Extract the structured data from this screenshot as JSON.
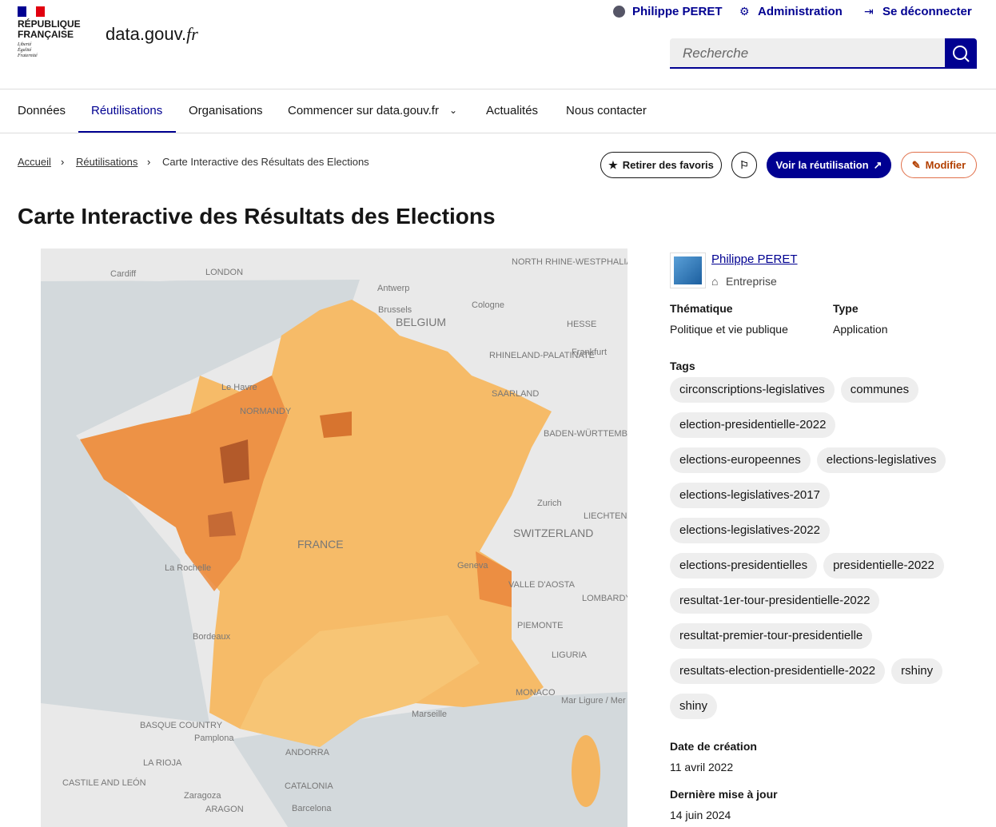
{
  "header": {
    "republique": [
      "RÉPUBLIQUE",
      "FRANÇAISE"
    ],
    "motto": [
      "Liberté",
      "Égalité",
      "Fraternité"
    ],
    "site_name": "data.gouv.",
    "site_tld": "fr",
    "user_links": [
      "Philippe PERET",
      "Administration",
      "Se déconnecter"
    ],
    "search_placeholder": "Recherche"
  },
  "nav": [
    "Données",
    "Réutilisations",
    "Organisations",
    "Commencer sur data.gouv.fr",
    "Actualités",
    "Nous contacter"
  ],
  "breadcrumb": [
    "Accueil",
    "Réutilisations",
    "Carte Interactive des Résultats des Elections"
  ],
  "actions": [
    "Retirer des favoris",
    "Voir la réutilisation",
    "Modifier"
  ],
  "title": "Carte Interactive des Résultats des Elections",
  "map_labels": [
    "LONDON",
    "Cardiff",
    "NORTH RHINE-WESTPHALIA",
    "Antwerp",
    "Brussels",
    "BELGIUM",
    "Cologne",
    "HESSE",
    "RHINELAND-PALATINATE",
    "Frankfurt",
    "Le Havre",
    "NORMANDY",
    "SAARLAND",
    "BADEN-WÜRTTEMBERG",
    "Zurich",
    "SWITZERLAND",
    "LIECHTENSTEIN",
    "FRANCE",
    "La Rochelle",
    "Geneva",
    "VALLE D'AOSTA",
    "LOMBARDY",
    "PIEMONTE",
    "Bordeaux",
    "LIGURIA",
    "MONACO",
    "Mar Ligure / Mer Ligure",
    "Marseille",
    "BASQUE COUNTRY",
    "Pamplona",
    "ANDORRA",
    "LA RIOJA",
    "CASTILE AND LEÓN",
    "Zaragoza",
    "CATALONIA",
    "ARAGON",
    "Barcelona"
  ],
  "sidebar": {
    "author": "Philippe PERET",
    "author_type": "Entreprise",
    "theme_label": "Thématique",
    "theme": "Politique et vie publique",
    "type_label": "Type",
    "type": "Application",
    "tags_label": "Tags",
    "tags": [
      "circonscriptions-legislatives",
      "communes",
      "election-presidentielle-2022",
      "elections-europeennes",
      "elections-legislatives",
      "elections-legislatives-2017",
      "elections-legislatives-2022",
      "elections-presidentielles",
      "presidentielle-2022",
      "resultat-1er-tour-presidentielle-2022",
      "resultat-premier-tour-presidentielle",
      "resultats-election-presidentielle-2022",
      "rshiny",
      "shiny"
    ],
    "created_label": "Date de création",
    "created": "11 avril 2022",
    "updated_label": "Dernière mise à jour",
    "updated": "14 juin 2024"
  }
}
